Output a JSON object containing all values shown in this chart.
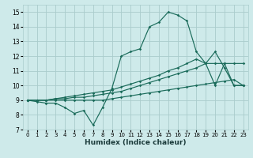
{
  "xlabel": "Humidex (Indice chaleur)",
  "xlim": [
    -0.5,
    23.5
  ],
  "ylim": [
    7,
    15.5
  ],
  "yticks": [
    7,
    8,
    9,
    10,
    11,
    12,
    13,
    14,
    15
  ],
  "xticks": [
    0,
    1,
    2,
    3,
    4,
    5,
    6,
    7,
    8,
    9,
    10,
    11,
    12,
    13,
    14,
    15,
    16,
    17,
    18,
    19,
    20,
    21,
    22,
    23
  ],
  "background_color": "#ceeaea",
  "grid_color": "#aacccc",
  "line_color": "#1a6b5a",
  "line1_y": [
    9.0,
    8.9,
    8.8,
    8.8,
    8.5,
    8.1,
    8.3,
    7.3,
    8.5,
    9.8,
    12.0,
    12.3,
    12.5,
    14.0,
    14.3,
    15.0,
    14.8,
    14.4,
    12.3,
    11.5,
    10.0,
    11.5,
    10.0,
    10.0
  ],
  "line2_y": [
    9.0,
    9.0,
    9.0,
    9.0,
    9.0,
    9.0,
    9.0,
    9.0,
    9.0,
    9.1,
    9.2,
    9.3,
    9.4,
    9.5,
    9.6,
    9.7,
    9.8,
    9.9,
    10.0,
    10.1,
    10.2,
    10.3,
    10.4,
    10.0
  ],
  "line3_y": [
    9.0,
    9.0,
    9.0,
    9.1,
    9.1,
    9.2,
    9.2,
    9.3,
    9.4,
    9.5,
    9.6,
    9.8,
    10.0,
    10.2,
    10.4,
    10.6,
    10.8,
    11.0,
    11.2,
    11.5,
    11.5,
    11.5,
    11.5,
    11.5
  ],
  "line4_y": [
    9.0,
    9.0,
    9.0,
    9.1,
    9.2,
    9.3,
    9.4,
    9.5,
    9.6,
    9.7,
    9.9,
    10.1,
    10.3,
    10.5,
    10.7,
    11.0,
    11.2,
    11.5,
    11.8,
    11.5,
    12.3,
    11.2,
    10.0,
    10.0
  ]
}
